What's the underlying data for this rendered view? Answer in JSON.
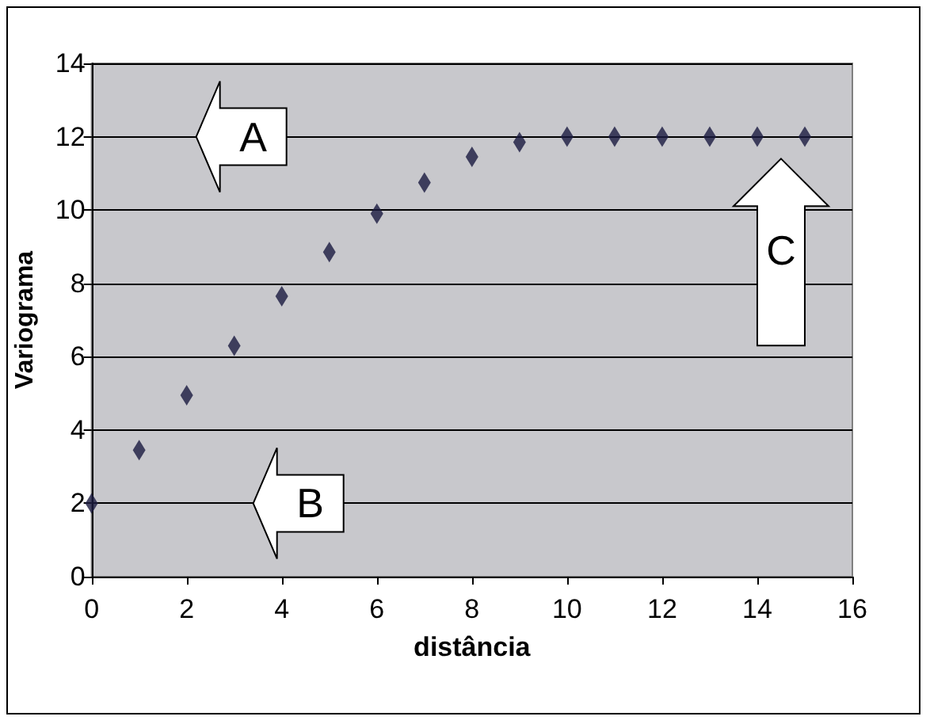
{
  "chart_data": {
    "type": "scatter",
    "xlabel": "distância",
    "ylabel": "Variograma",
    "x": [
      0,
      1,
      2,
      3,
      4,
      5,
      6,
      7,
      8,
      9,
      10,
      11,
      12,
      13,
      14,
      15
    ],
    "series": [
      {
        "color": "#1a1a40",
        "values": [
          2,
          3.45,
          4.95,
          6.3,
          7.65,
          8.85,
          9.9,
          10.75,
          11.45,
          11.85,
          12,
          12,
          12,
          12,
          12,
          12
        ]
      }
    ],
    "xlim": [
      0,
      16
    ],
    "xticks": [
      0,
      2,
      4,
      6,
      8,
      10,
      12,
      14,
      16
    ],
    "ylim": [
      0,
      14
    ],
    "yticks": [
      0,
      2,
      4,
      6,
      8,
      10,
      12,
      14
    ],
    "grid": "y",
    "marker": "diamond",
    "annotations": [
      "A",
      "B",
      "C"
    ]
  }
}
